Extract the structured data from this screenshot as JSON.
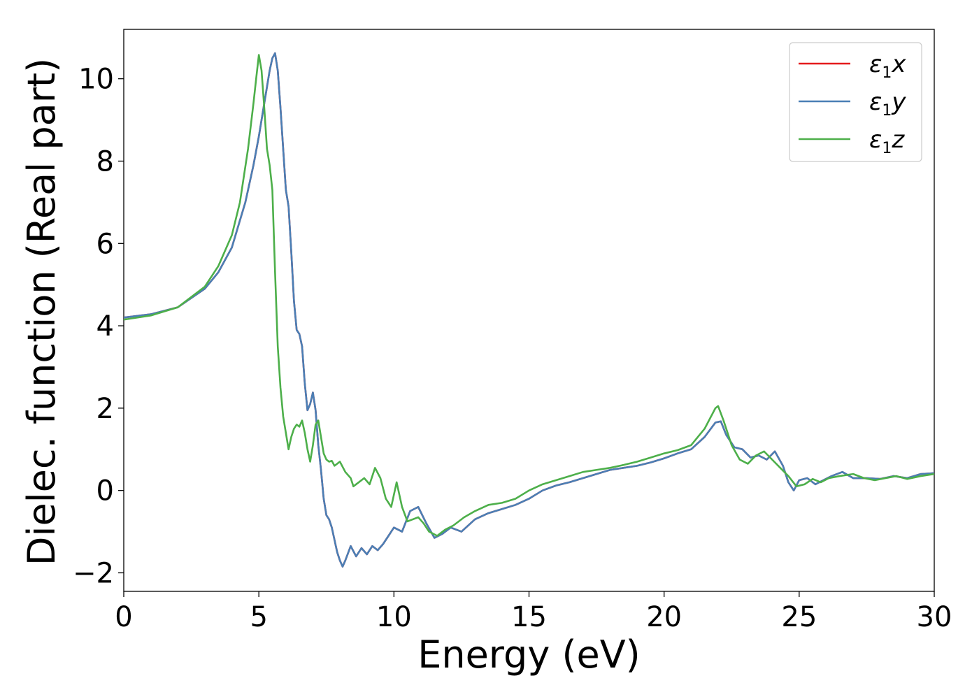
{
  "chart_data": {
    "type": "line",
    "title": "",
    "xlabel": "Energy (eV)",
    "ylabel": "Dielec. function (Real part)",
    "xlim": [
      0,
      30
    ],
    "ylim": [
      -2.45,
      11.2
    ],
    "xticks": [
      0,
      5,
      10,
      15,
      20,
      25,
      30
    ],
    "yticks": [
      -2,
      0,
      2,
      4,
      6,
      8,
      10
    ],
    "xtick_labels": [
      "0",
      "5",
      "10",
      "15",
      "20",
      "25",
      "30"
    ],
    "ytick_labels": [
      "−2",
      "0",
      "2",
      "4",
      "6",
      "8",
      "10"
    ],
    "grid": false,
    "legend_position": "top-right",
    "series": [
      {
        "name": "ε₁x",
        "legend_main": "ε",
        "legend_sub": "1",
        "legend_tail": "x",
        "color": "#e41a1c",
        "x": [
          0,
          1,
          2,
          3,
          3.5,
          4,
          4.5,
          4.8,
          5.0,
          5.2,
          5.4,
          5.5,
          5.6,
          5.7,
          5.8,
          5.9,
          6.0,
          6.1,
          6.2,
          6.3,
          6.4,
          6.5,
          6.6,
          6.7,
          6.8,
          6.9,
          7.0,
          7.1,
          7.2,
          7.3,
          7.4,
          7.5,
          7.6,
          7.7,
          7.8,
          7.9,
          8.0,
          8.1,
          8.2,
          8.4,
          8.6,
          8.8,
          9.0,
          9.2,
          9.4,
          9.6,
          9.8,
          10.0,
          10.3,
          10.6,
          10.9,
          11.2,
          11.5,
          11.8,
          12.1,
          12.5,
          13.0,
          13.5,
          14.0,
          14.5,
          15.0,
          15.5,
          16.0,
          16.5,
          17.0,
          17.5,
          18.0,
          18.5,
          19.0,
          19.5,
          20.0,
          20.5,
          21.0,
          21.5,
          21.9,
          22.1,
          22.3,
          22.6,
          22.9,
          23.2,
          23.5,
          23.8,
          24.1,
          24.4,
          24.6,
          24.8,
          25.0,
          25.3,
          25.6,
          25.9,
          26.2,
          26.6,
          27.0,
          27.5,
          28.0,
          28.5,
          29.0,
          29.5,
          30.0
        ],
        "y": [
          4.2,
          4.28,
          4.45,
          4.9,
          5.3,
          5.9,
          7.0,
          7.9,
          8.6,
          9.4,
          10.2,
          10.5,
          10.62,
          10.2,
          9.3,
          8.3,
          7.3,
          6.9,
          5.8,
          4.6,
          3.9,
          3.8,
          3.5,
          2.6,
          1.95,
          2.1,
          2.38,
          1.95,
          1.1,
          0.5,
          -0.2,
          -0.6,
          -0.7,
          -0.9,
          -1.2,
          -1.5,
          -1.7,
          -1.85,
          -1.7,
          -1.35,
          -1.6,
          -1.4,
          -1.55,
          -1.35,
          -1.45,
          -1.3,
          -1.1,
          -0.9,
          -1.0,
          -0.5,
          -0.4,
          -0.8,
          -1.15,
          -1.05,
          -0.9,
          -1.0,
          -0.7,
          -0.55,
          -0.45,
          -0.35,
          -0.2,
          0.0,
          0.12,
          0.2,
          0.3,
          0.4,
          0.5,
          0.55,
          0.6,
          0.68,
          0.78,
          0.9,
          1.0,
          1.3,
          1.65,
          1.68,
          1.35,
          1.05,
          1.0,
          0.8,
          0.85,
          0.75,
          0.95,
          0.6,
          0.2,
          0.0,
          0.25,
          0.3,
          0.15,
          0.25,
          0.35,
          0.45,
          0.3,
          0.3,
          0.28,
          0.35,
          0.3,
          0.4,
          0.42
        ]
      },
      {
        "name": "ε₁y",
        "legend_main": "ε",
        "legend_sub": "1",
        "legend_tail": "y",
        "color": "#4a7fb5",
        "x": [
          0,
          1,
          2,
          3,
          3.5,
          4,
          4.5,
          4.8,
          5.0,
          5.2,
          5.4,
          5.5,
          5.6,
          5.7,
          5.8,
          5.9,
          6.0,
          6.1,
          6.2,
          6.3,
          6.4,
          6.5,
          6.6,
          6.7,
          6.8,
          6.9,
          7.0,
          7.1,
          7.2,
          7.3,
          7.4,
          7.5,
          7.6,
          7.7,
          7.8,
          7.9,
          8.0,
          8.1,
          8.2,
          8.4,
          8.6,
          8.8,
          9.0,
          9.2,
          9.4,
          9.6,
          9.8,
          10.0,
          10.3,
          10.6,
          10.9,
          11.2,
          11.5,
          11.8,
          12.1,
          12.5,
          13.0,
          13.5,
          14.0,
          14.5,
          15.0,
          15.5,
          16.0,
          16.5,
          17.0,
          17.5,
          18.0,
          18.5,
          19.0,
          19.5,
          20.0,
          20.5,
          21.0,
          21.5,
          21.9,
          22.1,
          22.3,
          22.6,
          22.9,
          23.2,
          23.5,
          23.8,
          24.1,
          24.4,
          24.6,
          24.8,
          25.0,
          25.3,
          25.6,
          25.9,
          26.2,
          26.6,
          27.0,
          27.5,
          28.0,
          28.5,
          29.0,
          29.5,
          30.0
        ],
        "y": [
          4.2,
          4.28,
          4.45,
          4.9,
          5.3,
          5.9,
          7.0,
          7.9,
          8.6,
          9.4,
          10.2,
          10.5,
          10.62,
          10.2,
          9.3,
          8.3,
          7.3,
          6.9,
          5.8,
          4.6,
          3.9,
          3.8,
          3.5,
          2.6,
          1.95,
          2.1,
          2.38,
          1.95,
          1.1,
          0.5,
          -0.2,
          -0.6,
          -0.7,
          -0.9,
          -1.2,
          -1.5,
          -1.7,
          -1.85,
          -1.7,
          -1.35,
          -1.6,
          -1.4,
          -1.55,
          -1.35,
          -1.45,
          -1.3,
          -1.1,
          -0.9,
          -1.0,
          -0.5,
          -0.4,
          -0.8,
          -1.15,
          -1.05,
          -0.9,
          -1.0,
          -0.7,
          -0.55,
          -0.45,
          -0.35,
          -0.2,
          0.0,
          0.12,
          0.2,
          0.3,
          0.4,
          0.5,
          0.55,
          0.6,
          0.68,
          0.78,
          0.9,
          1.0,
          1.3,
          1.65,
          1.68,
          1.35,
          1.05,
          1.0,
          0.8,
          0.85,
          0.75,
          0.95,
          0.6,
          0.2,
          0.0,
          0.25,
          0.3,
          0.15,
          0.25,
          0.35,
          0.45,
          0.3,
          0.3,
          0.28,
          0.35,
          0.3,
          0.4,
          0.42
        ]
      },
      {
        "name": "ε₁z",
        "legend_main": "ε",
        "legend_sub": "1",
        "legend_tail": "z",
        "color": "#4daf4a",
        "x": [
          0,
          1,
          2,
          3,
          3.5,
          4,
          4.3,
          4.6,
          4.8,
          4.9,
          5.0,
          5.1,
          5.2,
          5.3,
          5.4,
          5.5,
          5.6,
          5.7,
          5.8,
          5.9,
          6.0,
          6.1,
          6.2,
          6.3,
          6.4,
          6.5,
          6.6,
          6.7,
          6.8,
          6.9,
          7.0,
          7.1,
          7.2,
          7.3,
          7.4,
          7.5,
          7.6,
          7.7,
          7.8,
          8.0,
          8.2,
          8.4,
          8.5,
          8.7,
          8.9,
          9.1,
          9.3,
          9.5,
          9.7,
          9.9,
          10.1,
          10.3,
          10.5,
          10.7,
          10.9,
          11.1,
          11.3,
          11.6,
          11.9,
          12.2,
          12.6,
          13.0,
          13.5,
          14.0,
          14.5,
          15.0,
          15.5,
          16.0,
          16.5,
          17.0,
          17.5,
          18.0,
          18.5,
          19.0,
          19.5,
          20.0,
          20.5,
          21.0,
          21.5,
          21.9,
          22.0,
          22.2,
          22.5,
          22.8,
          23.1,
          23.4,
          23.7,
          24.0,
          24.3,
          24.6,
          24.9,
          25.2,
          25.5,
          25.8,
          26.1,
          26.5,
          27.0,
          27.4,
          27.8,
          28.2,
          28.6,
          29.0,
          29.5,
          30.0
        ],
        "y": [
          4.15,
          4.25,
          4.45,
          4.95,
          5.45,
          6.2,
          7.0,
          8.3,
          9.4,
          10.0,
          10.58,
          10.2,
          9.3,
          8.3,
          7.9,
          7.3,
          5.3,
          3.5,
          2.5,
          1.8,
          1.4,
          1.0,
          1.3,
          1.5,
          1.6,
          1.55,
          1.7,
          1.4,
          1.0,
          0.7,
          1.1,
          1.6,
          1.7,
          1.3,
          0.9,
          0.75,
          0.7,
          0.72,
          0.6,
          0.7,
          0.45,
          0.3,
          0.1,
          0.2,
          0.3,
          0.15,
          0.55,
          0.3,
          -0.2,
          -0.4,
          0.2,
          -0.4,
          -0.75,
          -0.7,
          -0.65,
          -0.8,
          -1.0,
          -1.1,
          -0.95,
          -0.85,
          -0.65,
          -0.5,
          -0.35,
          -0.3,
          -0.2,
          0.0,
          0.15,
          0.25,
          0.35,
          0.45,
          0.5,
          0.55,
          0.62,
          0.7,
          0.8,
          0.9,
          0.98,
          1.1,
          1.5,
          2.0,
          2.05,
          1.7,
          1.1,
          0.75,
          0.65,
          0.85,
          0.95,
          0.75,
          0.55,
          0.35,
          0.1,
          0.15,
          0.28,
          0.2,
          0.3,
          0.35,
          0.4,
          0.3,
          0.25,
          0.3,
          0.35,
          0.28,
          0.35,
          0.4
        ]
      }
    ]
  }
}
